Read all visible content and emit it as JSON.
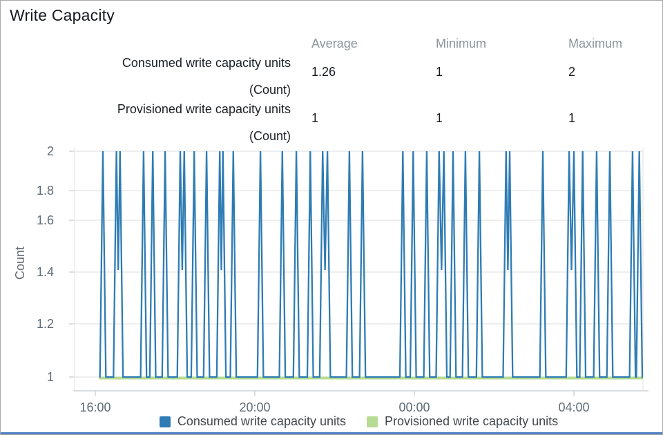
{
  "panel": {
    "title": "Write Capacity"
  },
  "stats": {
    "columns": [
      "Average",
      "Minimum",
      "Maximum"
    ],
    "rows": [
      {
        "label": "Consumed write capacity units",
        "unit": "(Count)",
        "values": {
          "average": "1.26",
          "minimum": "1",
          "maximum": "2"
        }
      },
      {
        "label": "Provisioned write capacity units",
        "unit": "(Count)",
        "values": {
          "average": "1",
          "minimum": "1",
          "maximum": "1"
        }
      }
    ]
  },
  "legend": [
    {
      "label": "Consumed write capacity units",
      "color": "#2e7cb4"
    },
    {
      "label": "Provisioned write capacity units",
      "color": "#b7db93"
    }
  ],
  "colors": {
    "consumed_blue": "#2e7cb4",
    "provisioned_green": "#b7db93",
    "grid": "#e9e9e9",
    "axis_line": "#ccd1d6",
    "axis_text": "#5f6b76",
    "accent_bottom_bar": "#4d80c4"
  },
  "chart_data": {
    "type": "line",
    "title": "Write Capacity",
    "xlabel": "",
    "ylabel": "Count",
    "ylim": [
      1,
      2
    ],
    "grid": "horizontal",
    "legend_position": "bottom",
    "y_tick_labels": [
      "2",
      "1.8",
      "1.6",
      "1.4",
      "1.2",
      "1"
    ],
    "x_tick_labels": [
      "16:00",
      "20:00",
      "00:00",
      "04:00"
    ],
    "x_tick_hours_after_start": [
      0,
      4,
      8,
      12
    ],
    "x_axis_start_time": "16:00",
    "series": [
      {
        "name": "Consumed write capacity units",
        "color": "#2e7cb4",
        "baseline_value": 1,
        "spike_value": 2,
        "data_start_hour": 0.1,
        "data_end_hour": 13.73,
        "paired_dip_value": 1.48,
        "spike_hours_after_1600": [
          0.19,
          0.53,
          0.62,
          1.21,
          1.44,
          1.75,
          2.13,
          2.23,
          2.48,
          2.79,
          3.12,
          3.2,
          3.46,
          4.14,
          4.69,
          5.04,
          5.39,
          5.7,
          5.82,
          6.37,
          6.7,
          7.71,
          7.97,
          8.31,
          8.62,
          8.74,
          8.97,
          9.28,
          9.63,
          10.3,
          10.39,
          11.22,
          11.88,
          12.0,
          12.22,
          12.57,
          12.9,
          13.47,
          13.64
        ],
        "summary": {
          "average": 1.26,
          "minimum": 1,
          "maximum": 2
        }
      },
      {
        "name": "Provisioned write capacity units",
        "color": "#b7db93",
        "constant_value": 1,
        "data_start_hour": 0.1,
        "data_end_hour": 13.73,
        "summary": {
          "average": 1,
          "minimum": 1,
          "maximum": 1
        }
      }
    ]
  }
}
